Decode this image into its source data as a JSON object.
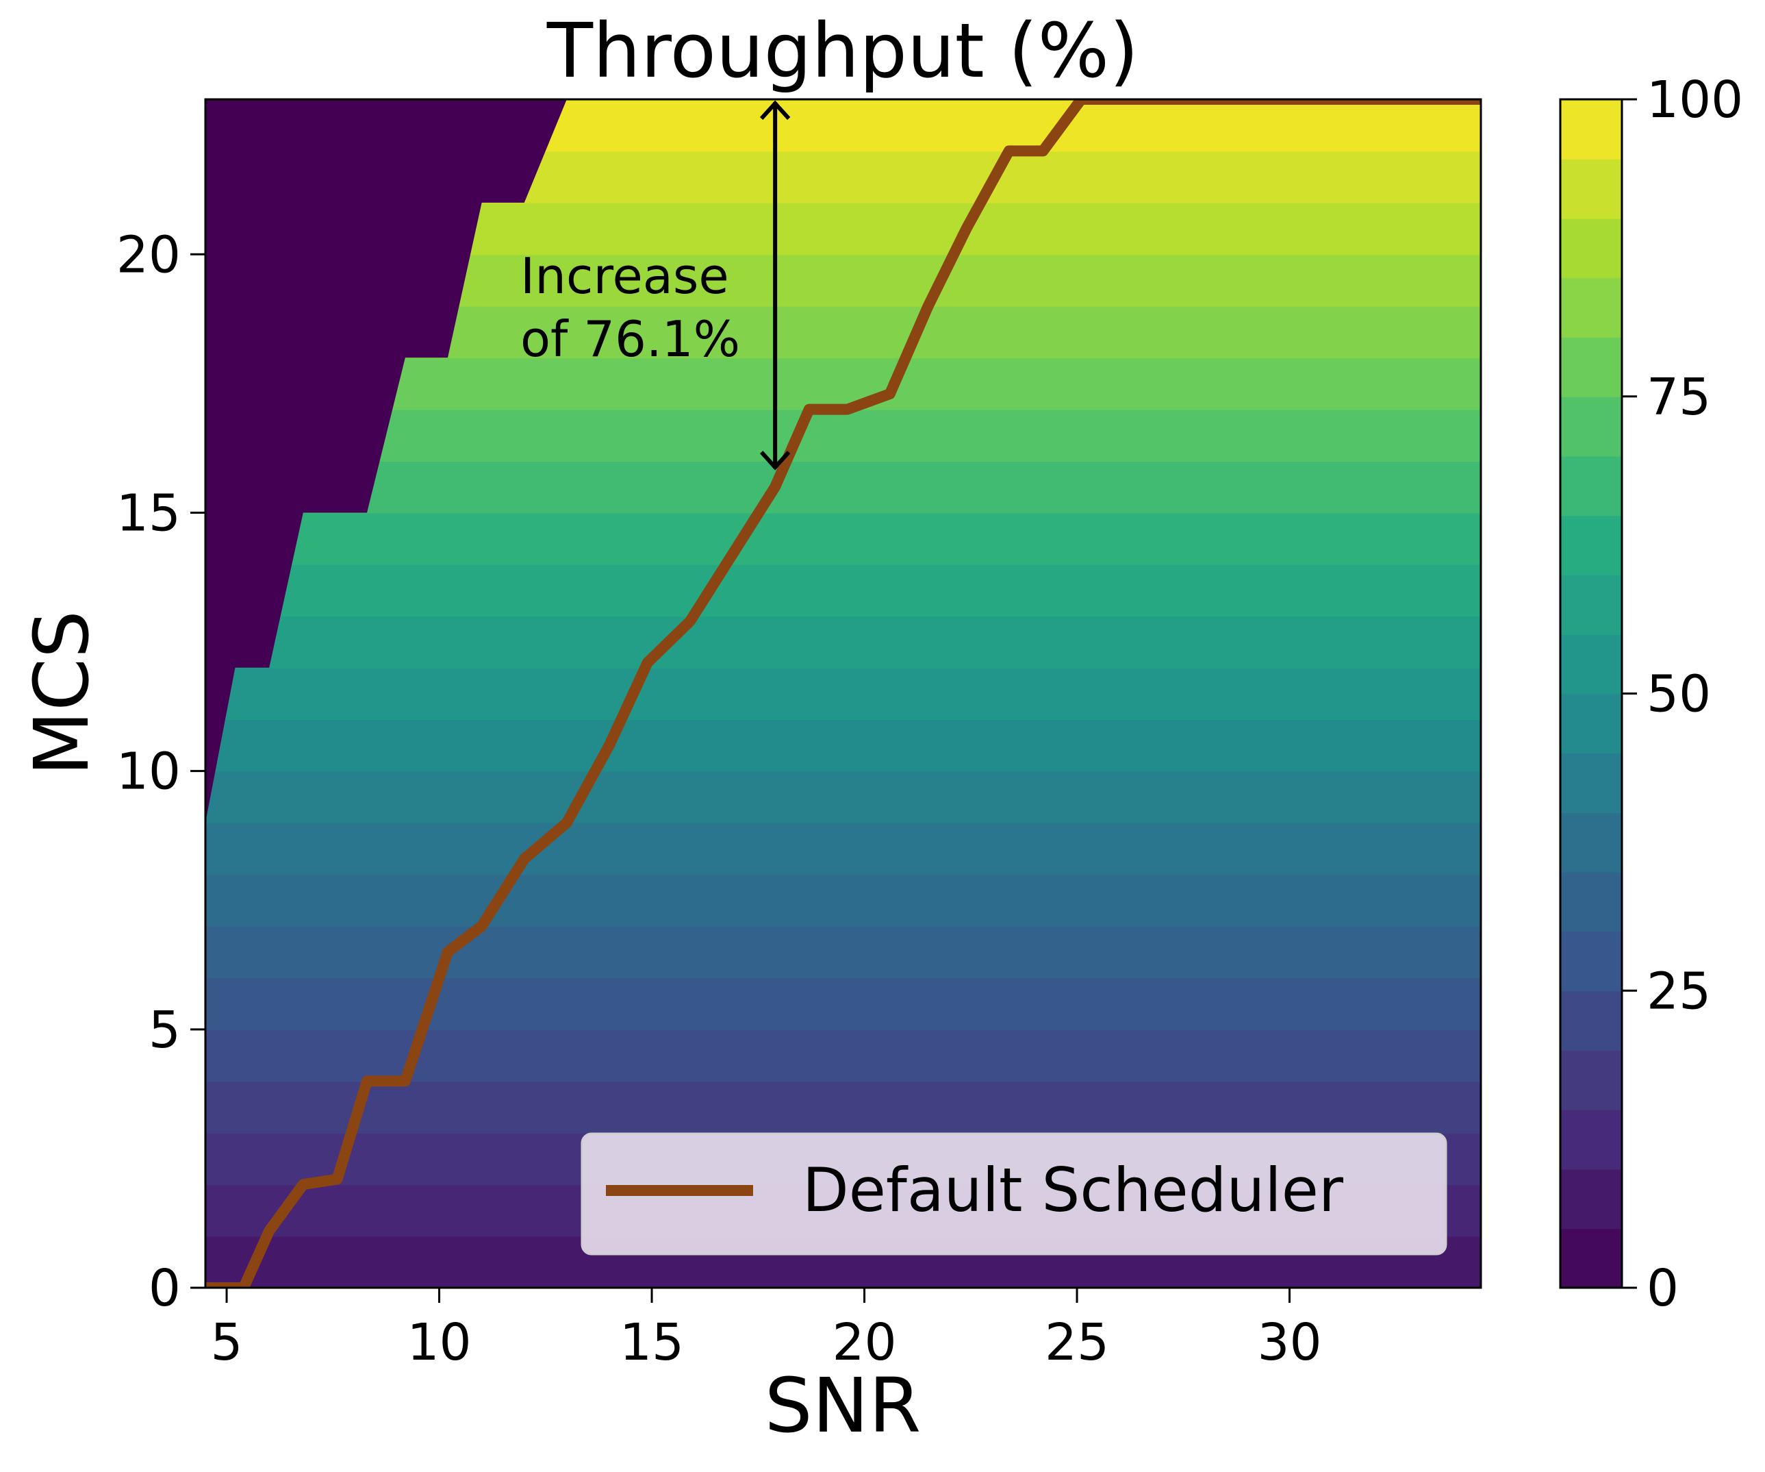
{
  "chart_data": {
    "type": "heatmap",
    "title": "Throughput (%)",
    "xlabel": "SNR",
    "ylabel": "MCS",
    "xlim": [
      4.5,
      34.5
    ],
    "ylim": [
      0,
      23
    ],
    "xticks": [
      5,
      10,
      15,
      20,
      25,
      30
    ],
    "yticks": [
      0,
      5,
      10,
      15,
      20
    ],
    "colormap": "viridis",
    "colorbar": {
      "range": [
        0,
        100
      ],
      "ticks": [
        0,
        25,
        50,
        75,
        100
      ]
    },
    "z_description_values": {
      "mcs_to_throughput_top": 100,
      "mcs_to_throughput_bottom": 5
    },
    "failure_boundary": {
      "snr": [
        4.5,
        5.2,
        6.0,
        6.8,
        8.3,
        9.2,
        10.2,
        11.0,
        12.0,
        13.0,
        14.0,
        15.0,
        16.0,
        34.5
      ],
      "mcs": [
        9,
        12,
        12,
        15,
        15,
        18,
        18,
        21,
        21,
        23,
        23,
        23,
        23,
        23
      ]
    },
    "series": [
      {
        "name": "Default Scheduler",
        "color": "#8b4513",
        "x": [
          4.5,
          5.4,
          6.0,
          6.8,
          7.6,
          8.3,
          9.2,
          10.2,
          11.0,
          12.0,
          13.0,
          14.0,
          14.9,
          15.9,
          16.9,
          17.9,
          18.7,
          19.6,
          20.6,
          21.5,
          22.4,
          23.4,
          24.2,
          25.1,
          34.5
        ],
        "y": [
          0,
          0,
          1.1,
          2.0,
          2.1,
          4.0,
          4.0,
          6.5,
          7.0,
          8.3,
          9.0,
          10.5,
          12.1,
          12.9,
          14.2,
          15.5,
          17.0,
          17.0,
          17.3,
          19.0,
          20.5,
          22.0,
          22.0,
          23.0,
          23.0
        ]
      }
    ],
    "annotation": {
      "text_line1": "Increase",
      "text_line2": "of 76.1%",
      "arrow_x": 17.9,
      "arrow_y_start": 15.8,
      "arrow_y_end": 23
    },
    "legend": {
      "position": "bottom-right",
      "entries": [
        "Default Scheduler"
      ]
    },
    "grid": false
  }
}
